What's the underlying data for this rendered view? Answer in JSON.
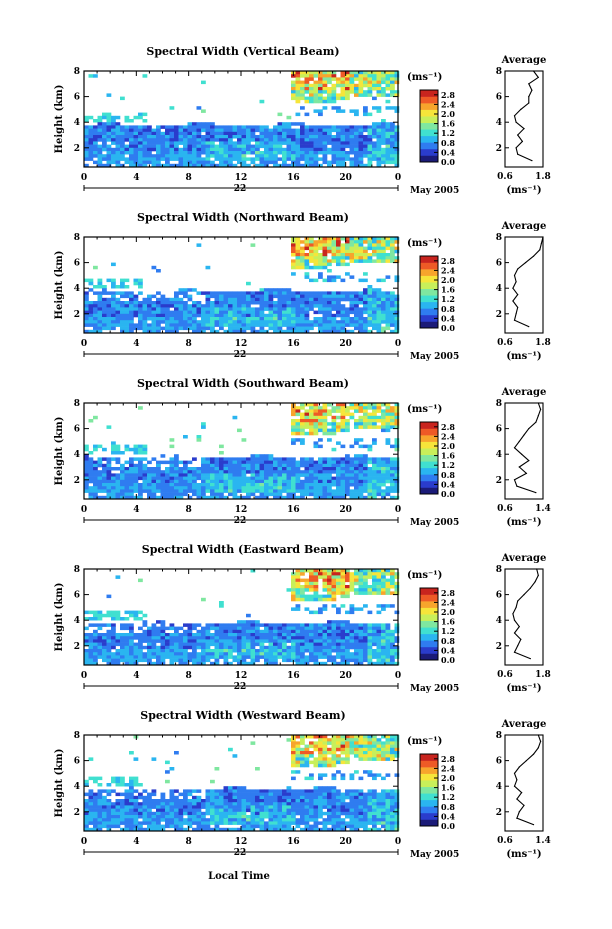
{
  "figure": {
    "date_label": "May 2005",
    "day_label": "22",
    "xlabel_bottom": "Local Time",
    "colorbar_unit": "(ms⁻¹)",
    "avg_title": "Average",
    "avg_xlabel": "(ms⁻¹)"
  },
  "chart_data": [
    {
      "type": "heatmap",
      "title": "Spectral Width (Vertical Beam)",
      "ylabel": "Height (km)",
      "x_ticks": [
        "0",
        "4",
        "8",
        "12",
        "16",
        "20",
        "0"
      ],
      "xlim": [
        0,
        24
      ],
      "ylim": [
        0.5,
        8
      ],
      "y_ticks": [
        "2",
        "4",
        "6",
        "8"
      ],
      "colorbar": {
        "ticks": [
          "2.8",
          "2.4",
          "2.0",
          "1.6",
          "1.2",
          "0.8",
          "0.4",
          "0.0"
        ],
        "range": [
          0,
          3.0
        ],
        "colors": [
          "#1b1b78",
          "#2a3ccc",
          "#2f7cf0",
          "#2ab5f0",
          "#40e0d0",
          "#7fe7a0",
          "#c8ef5a",
          "#f6e53a",
          "#f7a52c",
          "#ee5a26",
          "#c8241e"
        ]
      },
      "average": {
        "xlim": [
          0.6,
          1.8
        ],
        "x_ticks": [
          "0.6",
          "1.8"
        ],
        "y_ticks": [
          "2",
          "4",
          "6",
          "8"
        ],
        "height_km": [
          1.0,
          1.5,
          2.0,
          2.5,
          3.0,
          3.5,
          4.0,
          4.5,
          5.0,
          5.5,
          6.0,
          6.5,
          7.0,
          7.5,
          8.0
        ],
        "width_ms": [
          1.45,
          1.0,
          0.95,
          1.15,
          1.0,
          1.2,
          0.95,
          0.9,
          1.1,
          1.35,
          1.35,
          1.45,
          1.35,
          1.65,
          1.5
        ]
      }
    },
    {
      "type": "heatmap",
      "title": "Spectral Width (Northward Beam)",
      "ylabel": "Height (km)",
      "x_ticks": [
        "0",
        "4",
        "8",
        "12",
        "16",
        "20",
        "0"
      ],
      "xlim": [
        0,
        24
      ],
      "ylim": [
        0.5,
        8
      ],
      "y_ticks": [
        "2",
        "4",
        "6",
        "8"
      ],
      "colorbar": {
        "ticks": [
          "2.8",
          "2.4",
          "2.0",
          "1.6",
          "1.2",
          "0.8",
          "0.4",
          "0.0"
        ],
        "range": [
          0,
          3.0
        ],
        "colors": [
          "#1b1b78",
          "#2a3ccc",
          "#2f7cf0",
          "#2ab5f0",
          "#40e0d0",
          "#7fe7a0",
          "#c8ef5a",
          "#f6e53a",
          "#f7a52c",
          "#ee5a26",
          "#c8241e"
        ]
      },
      "average": {
        "xlim": [
          0.6,
          1.8
        ],
        "x_ticks": [
          "0.6",
          "1.8"
        ],
        "y_ticks": [
          "2",
          "4",
          "6",
          "8"
        ],
        "height_km": [
          1.0,
          1.5,
          2.0,
          2.5,
          3.0,
          3.5,
          4.0,
          4.5,
          5.0,
          5.5,
          6.0,
          6.5,
          7.0,
          7.5,
          8.0
        ],
        "width_ms": [
          1.35,
          0.9,
          0.95,
          1.0,
          0.85,
          1.0,
          0.85,
          0.95,
          0.9,
          1.0,
          1.25,
          1.5,
          1.7,
          1.75,
          1.8
        ]
      }
    },
    {
      "type": "heatmap",
      "title": "Spectral Width (Southward Beam)",
      "ylabel": "Height (km)",
      "x_ticks": [
        "0",
        "4",
        "8",
        "12",
        "16",
        "20",
        "0"
      ],
      "xlim": [
        0,
        24
      ],
      "ylim": [
        0.5,
        8
      ],
      "y_ticks": [
        "2",
        "4",
        "6",
        "8"
      ],
      "colorbar": {
        "ticks": [
          "2.8",
          "2.4",
          "2.0",
          "1.6",
          "1.2",
          "0.8",
          "0.4",
          "0.0"
        ],
        "range": [
          0,
          3.0
        ],
        "colors": [
          "#1b1b78",
          "#2a3ccc",
          "#2f7cf0",
          "#2ab5f0",
          "#40e0d0",
          "#7fe7a0",
          "#c8ef5a",
          "#f6e53a",
          "#f7a52c",
          "#ee5a26",
          "#c8241e"
        ]
      },
      "average": {
        "xlim": [
          0.6,
          1.4
        ],
        "x_ticks": [
          "0.6",
          "1.4"
        ],
        "y_ticks": [
          "2",
          "4",
          "6",
          "8"
        ],
        "height_km": [
          1.0,
          1.5,
          2.0,
          2.5,
          3.0,
          3.5,
          4.0,
          4.5,
          5.0,
          5.5,
          6.0,
          6.5,
          7.0,
          7.5,
          8.0
        ],
        "width_ms": [
          1.25,
          0.85,
          0.8,
          1.05,
          0.9,
          1.1,
          0.95,
          0.8,
          0.9,
          1.0,
          1.1,
          1.25,
          1.3,
          1.35,
          1.3
        ]
      }
    },
    {
      "type": "heatmap",
      "title": "Spectral Width (Eastward Beam)",
      "ylabel": "Height (km)",
      "x_ticks": [
        "0",
        "4",
        "8",
        "12",
        "16",
        "20",
        "0"
      ],
      "xlim": [
        0,
        24
      ],
      "ylim": [
        0.5,
        8
      ],
      "y_ticks": [
        "2",
        "4",
        "6",
        "8"
      ],
      "colorbar": {
        "ticks": [
          "2.8",
          "2.4",
          "2.0",
          "1.6",
          "1.2",
          "0.8",
          "0.4",
          "0.0"
        ],
        "range": [
          0,
          3.0
        ],
        "colors": [
          "#1b1b78",
          "#2a3ccc",
          "#2f7cf0",
          "#2ab5f0",
          "#40e0d0",
          "#7fe7a0",
          "#c8ef5a",
          "#f6e53a",
          "#f7a52c",
          "#ee5a26",
          "#c8241e"
        ]
      },
      "average": {
        "xlim": [
          0.6,
          1.8
        ],
        "x_ticks": [
          "0.6",
          "1.8"
        ],
        "y_ticks": [
          "2",
          "4",
          "6",
          "8"
        ],
        "height_km": [
          1.0,
          1.5,
          2.0,
          2.5,
          3.0,
          3.5,
          4.0,
          4.5,
          5.0,
          5.5,
          6.0,
          6.5,
          7.0,
          7.5,
          8.0
        ],
        "width_ms": [
          1.4,
          0.9,
          1.0,
          1.1,
          0.9,
          1.05,
          0.9,
          0.85,
          0.95,
          1.0,
          1.2,
          1.4,
          1.55,
          1.65,
          1.6
        ]
      }
    },
    {
      "type": "heatmap",
      "title": "Spectral Width (Westward Beam)",
      "ylabel": "Height (km)",
      "x_ticks": [
        "0",
        "4",
        "8",
        "12",
        "16",
        "20",
        "0"
      ],
      "xlim": [
        0,
        24
      ],
      "ylim": [
        0.5,
        8
      ],
      "y_ticks": [
        "2",
        "4",
        "6",
        "8"
      ],
      "colorbar": {
        "ticks": [
          "2.8",
          "2.4",
          "2.0",
          "1.6",
          "1.2",
          "0.8",
          "0.4",
          "0.0"
        ],
        "range": [
          0,
          3.0
        ],
        "colors": [
          "#1b1b78",
          "#2a3ccc",
          "#2f7cf0",
          "#2ab5f0",
          "#40e0d0",
          "#7fe7a0",
          "#c8ef5a",
          "#f6e53a",
          "#f7a52c",
          "#ee5a26",
          "#c8241e"
        ]
      },
      "average": {
        "xlim": [
          0.6,
          1.4
        ],
        "x_ticks": [
          "0.6",
          "1.4"
        ],
        "y_ticks": [
          "2",
          "4",
          "6",
          "8"
        ],
        "height_km": [
          1.0,
          1.5,
          2.0,
          2.5,
          3.0,
          3.5,
          4.0,
          4.5,
          5.0,
          5.5,
          6.0,
          6.5,
          7.0,
          7.5,
          8.0
        ],
        "width_ms": [
          1.2,
          0.85,
          0.9,
          1.0,
          0.85,
          0.95,
          0.8,
          0.85,
          0.8,
          0.9,
          1.05,
          1.2,
          1.3,
          1.35,
          1.3
        ]
      }
    }
  ]
}
